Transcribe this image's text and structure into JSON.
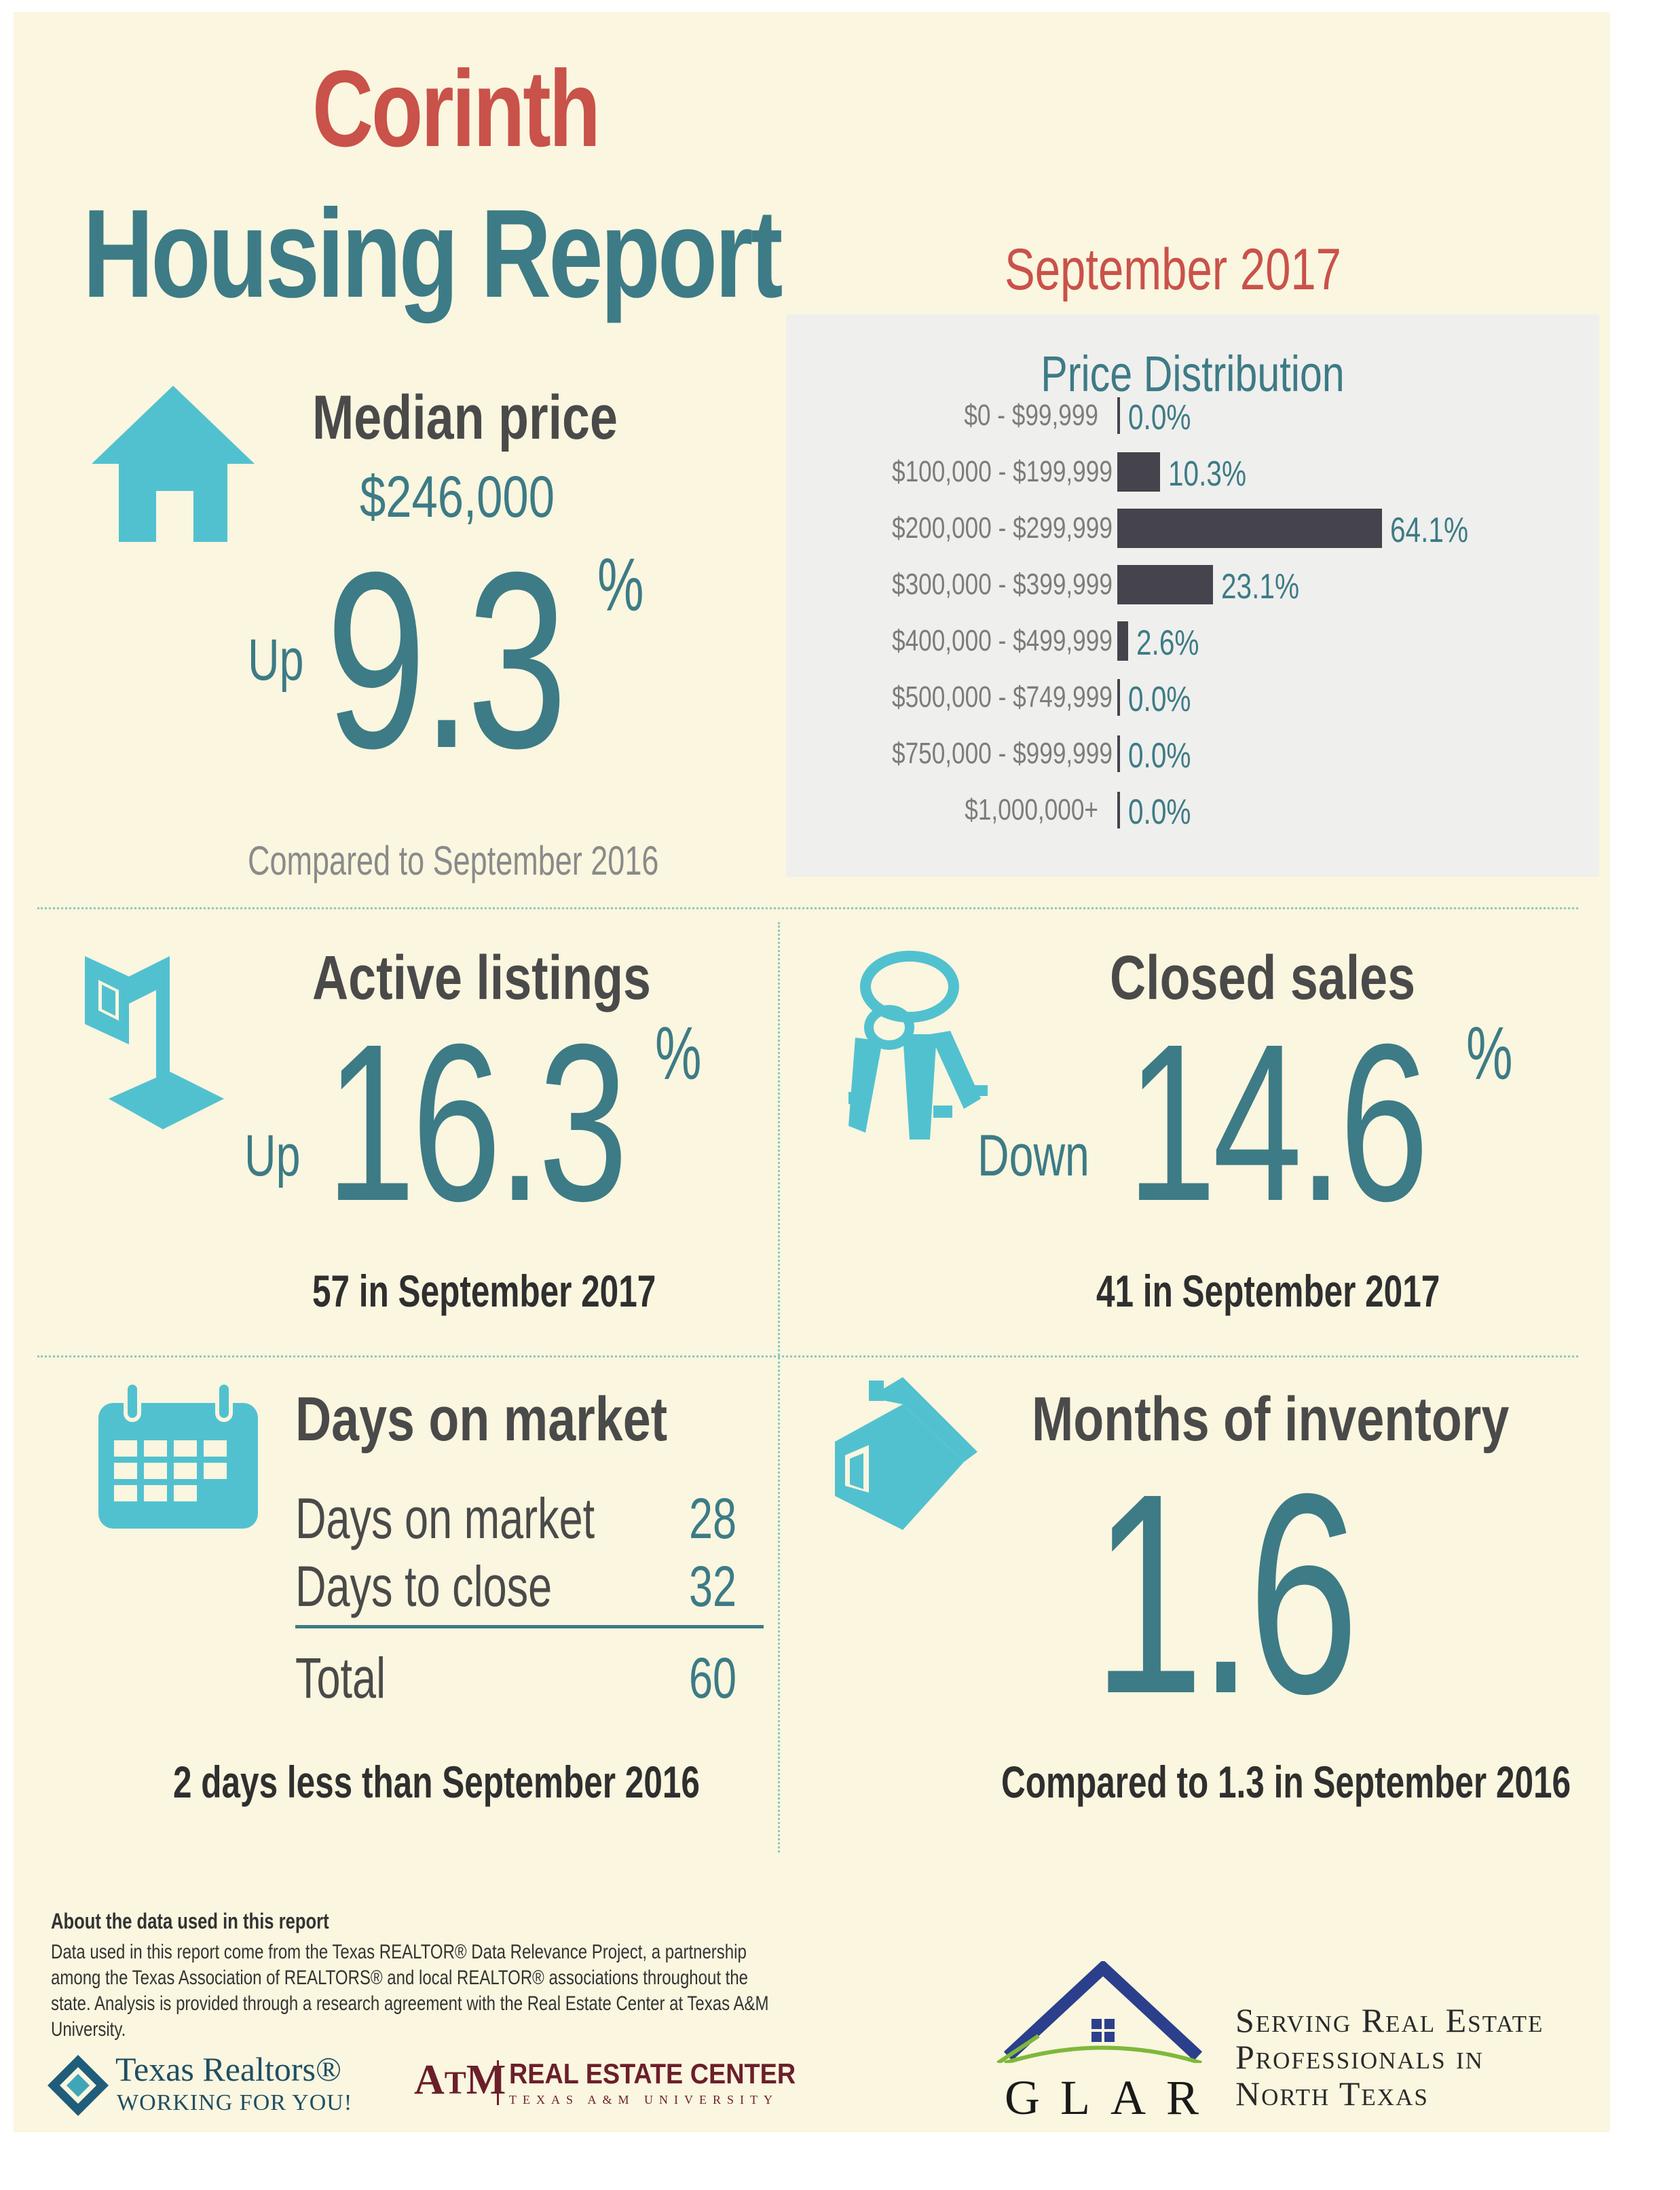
{
  "header": {
    "city": "Corinth",
    "report_title": "Housing Report",
    "period": "September 2017"
  },
  "median": {
    "heading": "Median price",
    "price": "$246,000",
    "direction": "Up",
    "change": "9.3",
    "percent_sign": "%",
    "compared": "Compared to September 2016"
  },
  "price_distribution": {
    "title": "Price Distribution",
    "rows": [
      {
        "range": "$0 - $99,999",
        "label": "0.0%",
        "pct": 0.0
      },
      {
        "range": "$100,000 - $199,999",
        "label": "10.3%",
        "pct": 10.3
      },
      {
        "range": "$200,000 - $299,999",
        "label": "64.1%",
        "pct": 64.1
      },
      {
        "range": "$300,000 - $399,999",
        "label": "23.1%",
        "pct": 23.1
      },
      {
        "range": "$400,000 - $499,999",
        "label": "2.6%",
        "pct": 2.6
      },
      {
        "range": "$500,000 - $749,999",
        "label": "0.0%",
        "pct": 0.0
      },
      {
        "range": "$750,000 - $999,999",
        "label": "0.0%",
        "pct": 0.0
      },
      {
        "range": "$1,000,000+",
        "label": "0.0%",
        "pct": 0.0
      }
    ]
  },
  "active_listings": {
    "heading": "Active listings",
    "direction": "Up",
    "change": "16.3",
    "percent_sign": "%",
    "note": "57 in September 2017"
  },
  "closed_sales": {
    "heading": "Closed sales",
    "direction": "Down",
    "change": "14.6",
    "percent_sign": "%",
    "note": "41 in September 2017"
  },
  "days_on_market": {
    "heading": "Days on market",
    "rows": [
      {
        "label": "Days on market",
        "value": "28"
      },
      {
        "label": "Days to close",
        "value": "32"
      }
    ],
    "total_label": "Total",
    "total_value": "60",
    "note": "2 days less than September 2016"
  },
  "months_inventory": {
    "heading": "Months of inventory",
    "value": "1.6",
    "note": "Compared to 1.3 in September 2016"
  },
  "footer": {
    "about_title": "About the data used in this report",
    "about_text": "Data used in this report come from the Texas REALTOR® Data Relevance Project, a partnership among the Texas Association of REALTORS® and local REALTOR® associations throughout the state. Analysis is provided through a research agreement with the Real Estate Center at Texas A&M University.",
    "texas_realtors_name": "Texas Realtors®",
    "texas_realtors_tagline": "WORKING FOR YOU!",
    "rec_name": "REAL ESTATE CENTER",
    "rec_sub": "TEXAS A&M UNIVERSITY",
    "glar_letters": "GLAR",
    "glar_tagline_1": "Serving Real Estate",
    "glar_tagline_2": "Professionals in",
    "glar_tagline_3": "North Texas"
  },
  "colors": {
    "background": "#faf6df",
    "teal": "#3d7b86",
    "icon_teal": "#52c1cf",
    "red": "#c9524a",
    "bar": "#45434b",
    "panel": "#efefed"
  }
}
